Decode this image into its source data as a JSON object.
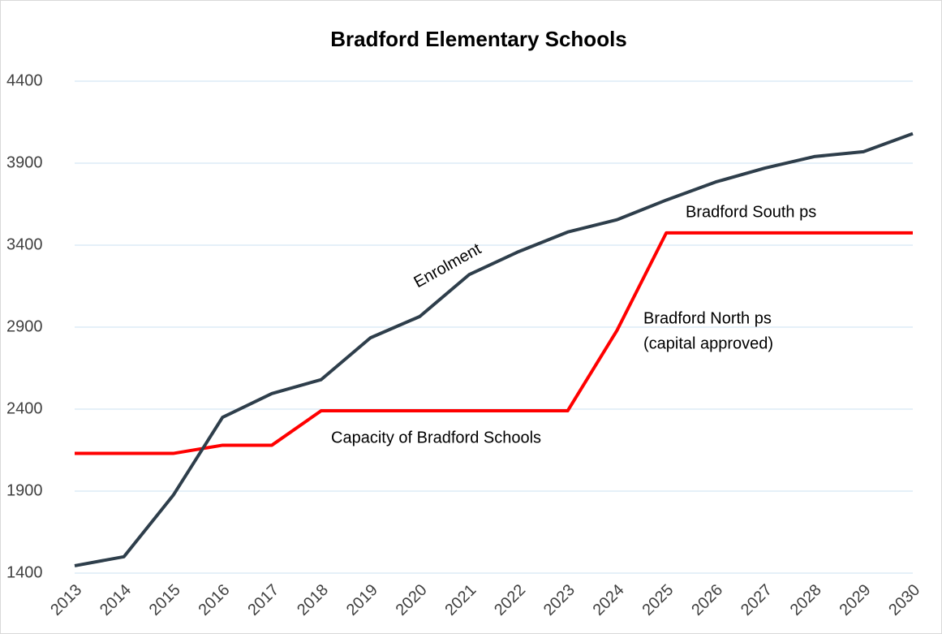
{
  "chart_data": {
    "type": "line",
    "title": "Bradford Elementary Schools",
    "categories": [
      "2013",
      "2014",
      "2015",
      "2016",
      "2017",
      "2018",
      "2019",
      "2020",
      "2021",
      "2022",
      "2023",
      "2024",
      "2025",
      "2026",
      "2027",
      "2028",
      "2029",
      "2030"
    ],
    "series": [
      {
        "name": "Enrolment",
        "color": "#2e3e4b",
        "values": [
          1445,
          1500,
          1875,
          2350,
          2495,
          2580,
          2835,
          2965,
          3220,
          3360,
          3480,
          3555,
          3675,
          3785,
          3870,
          3940,
          3970,
          4080
        ]
      },
      {
        "name": "Capacity of Bradford Schools",
        "color": "#ff0000",
        "values": [
          2130,
          2130,
          2130,
          2180,
          2180,
          2390,
          2390,
          2390,
          2390,
          2390,
          2390,
          2880,
          3475,
          3475,
          3475,
          3475,
          3475,
          3475
        ]
      }
    ],
    "annotations": [
      "Bradford North ps",
      "(capital approved)",
      "Bradford South ps"
    ],
    "ylim": [
      1400,
      4400
    ],
    "yticks": [
      1400,
      1900,
      2400,
      2900,
      3400,
      3900,
      4400
    ],
    "grid": true
  }
}
